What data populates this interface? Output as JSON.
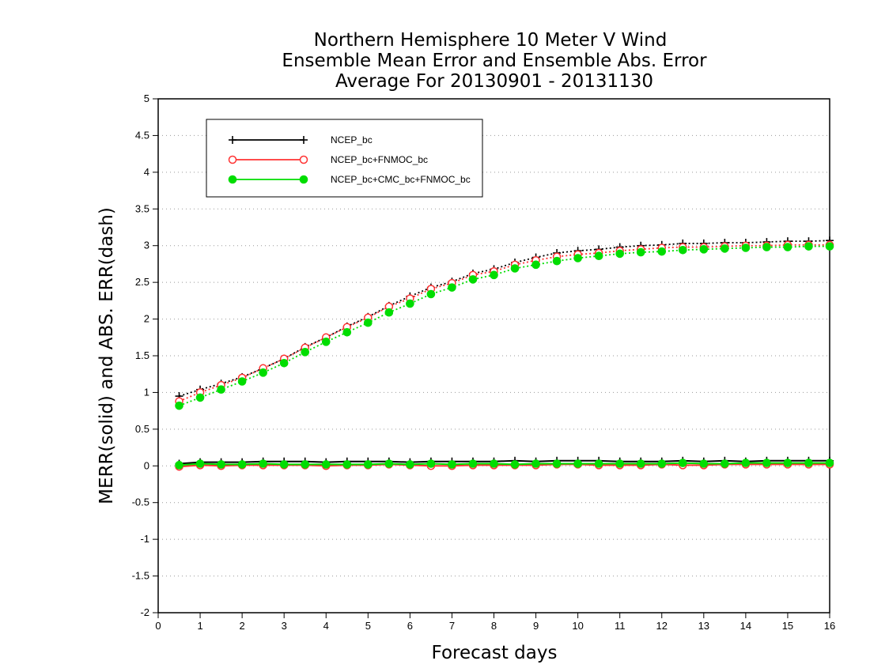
{
  "chart_data": {
    "type": "line",
    "title": [
      "Northern Hemisphere 10 Meter V Wind",
      "Ensemble Mean Error and Ensemble Abs. Error",
      "Average For 20130901 - 20131130"
    ],
    "xlabel": "Forecast days",
    "ylabel": "MERR(solid) and ABS. ERR(dash)",
    "xlim": [
      0,
      16
    ],
    "ylim": [
      -2,
      5
    ],
    "xticks": [
      "0",
      "1",
      "2",
      "3",
      "4",
      "5",
      "6",
      "7",
      "8",
      "9",
      "10",
      "11",
      "12",
      "13",
      "14",
      "15",
      "16"
    ],
    "yticks": [
      "-2",
      "-1.5",
      "-1",
      "-0.5",
      "0",
      "0.5",
      "1",
      "1.5",
      "2",
      "2.5",
      "3",
      "3.5",
      "4",
      "4.5",
      "5"
    ],
    "grid": true,
    "legend_position": "top-left",
    "x": [
      0.5,
      1,
      1.5,
      2,
      2.5,
      3,
      3.5,
      4,
      4.5,
      5,
      5.5,
      6,
      6.5,
      7,
      7.5,
      8,
      8.5,
      9,
      9.5,
      10,
      10.5,
      11,
      11.5,
      12,
      12.5,
      13,
      13.5,
      14,
      14.5,
      15,
      15.5,
      16
    ],
    "series": [
      {
        "name": "NCEP_bc",
        "color": "#000000",
        "marker": "plus",
        "merr": [
          0.03,
          0.05,
          0.05,
          0.05,
          0.06,
          0.06,
          0.06,
          0.05,
          0.06,
          0.06,
          0.06,
          0.05,
          0.06,
          0.06,
          0.06,
          0.06,
          0.07,
          0.06,
          0.07,
          0.07,
          0.07,
          0.06,
          0.06,
          0.06,
          0.07,
          0.06,
          0.07,
          0.06,
          0.07,
          0.07,
          0.07,
          0.07
        ],
        "abserr": [
          0.95,
          1.04,
          1.12,
          1.21,
          1.33,
          1.46,
          1.62,
          1.75,
          1.9,
          2.03,
          2.18,
          2.31,
          2.43,
          2.51,
          2.62,
          2.68,
          2.77,
          2.84,
          2.9,
          2.93,
          2.95,
          2.98,
          3.0,
          3.01,
          3.03,
          3.03,
          3.04,
          3.04,
          3.05,
          3.06,
          3.06,
          3.07
        ]
      },
      {
        "name": "NCEP_bc+FNMOC_bc",
        "color": "#ff3333",
        "marker": "open-circle",
        "merr": [
          -0.01,
          0.01,
          0.0,
          0.01,
          0.01,
          0.01,
          0.01,
          0.0,
          0.01,
          0.01,
          0.02,
          0.01,
          0.0,
          0.0,
          0.01,
          0.01,
          0.01,
          0.01,
          0.02,
          0.02,
          0.01,
          0.01,
          0.01,
          0.02,
          0.01,
          0.01,
          0.02,
          0.02,
          0.02,
          0.02,
          0.02,
          0.02
        ],
        "abserr": [
          0.88,
          1.0,
          1.1,
          1.2,
          1.33,
          1.46,
          1.61,
          1.75,
          1.89,
          2.02,
          2.17,
          2.28,
          2.41,
          2.49,
          2.6,
          2.65,
          2.74,
          2.8,
          2.85,
          2.88,
          2.9,
          2.93,
          2.95,
          2.97,
          2.98,
          2.98,
          2.99,
          3.0,
          3.0,
          3.01,
          3.01,
          3.01
        ]
      },
      {
        "name": "NCEP_bc+CMC_bc+FNMOC_bc",
        "color": "#00dd00",
        "marker": "filled-circle",
        "merr": [
          0.01,
          0.03,
          0.02,
          0.02,
          0.03,
          0.02,
          0.02,
          0.02,
          0.02,
          0.02,
          0.03,
          0.02,
          0.03,
          0.02,
          0.03,
          0.03,
          0.02,
          0.03,
          0.03,
          0.03,
          0.03,
          0.03,
          0.03,
          0.03,
          0.04,
          0.03,
          0.03,
          0.04,
          0.04,
          0.04,
          0.04,
          0.04
        ],
        "abserr": [
          0.82,
          0.93,
          1.04,
          1.15,
          1.27,
          1.4,
          1.55,
          1.69,
          1.82,
          1.95,
          2.09,
          2.21,
          2.34,
          2.43,
          2.54,
          2.6,
          2.69,
          2.74,
          2.79,
          2.83,
          2.86,
          2.89,
          2.91,
          2.92,
          2.94,
          2.95,
          2.96,
          2.97,
          2.98,
          2.98,
          2.99,
          2.99
        ]
      }
    ]
  }
}
